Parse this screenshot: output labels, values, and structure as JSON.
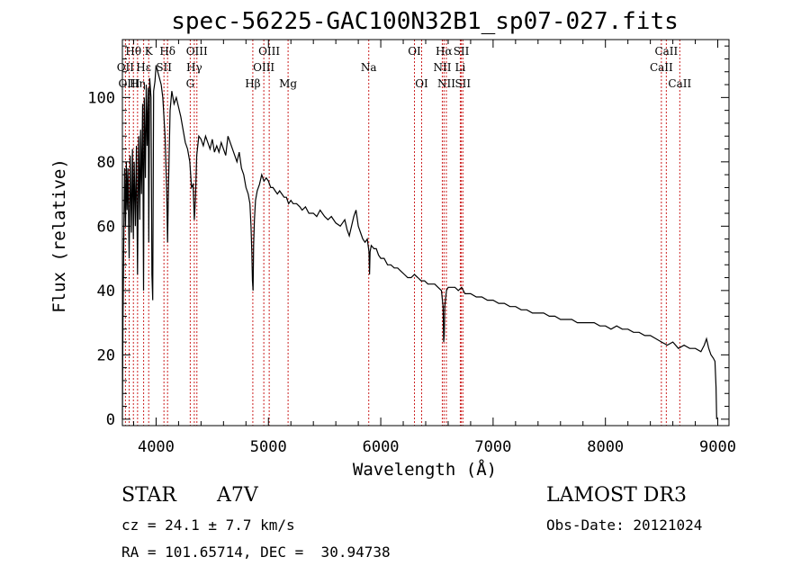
{
  "chart_data": {
    "type": "line",
    "title": "spec-56225-GAC100N32B1_sp07-027.fits",
    "xlabel": "Wavelength (Å)",
    "ylabel": "Flux (relative)",
    "xlim": [
      3700,
      9100
    ],
    "ylim": [
      -2,
      118
    ],
    "xticks": [
      4000,
      5000,
      6000,
      7000,
      8000,
      9000
    ],
    "yticks": [
      0,
      20,
      40,
      60,
      80,
      100
    ],
    "series": [
      {
        "name": "flux",
        "points": [
          [
            3700,
            0
          ],
          [
            3705,
            30
          ],
          [
            3712,
            55
          ],
          [
            3720,
            78
          ],
          [
            3728,
            60
          ],
          [
            3735,
            80
          ],
          [
            3742,
            65
          ],
          [
            3750,
            78
          ],
          [
            3760,
            50
          ],
          [
            3770,
            82
          ],
          [
            3780,
            58
          ],
          [
            3790,
            84
          ],
          [
            3798,
            56
          ],
          [
            3805,
            80
          ],
          [
            3815,
            60
          ],
          [
            3825,
            85
          ],
          [
            3835,
            45
          ],
          [
            3845,
            88
          ],
          [
            3855,
            62
          ],
          [
            3862,
            90
          ],
          [
            3870,
            70
          ],
          [
            3880,
            98
          ],
          [
            3888,
            40
          ],
          [
            3895,
            100
          ],
          [
            3905,
            75
          ],
          [
            3912,
            104
          ],
          [
            3920,
            85
          ],
          [
            3930,
            103
          ],
          [
            3935,
            55
          ],
          [
            3943,
            106
          ],
          [
            3955,
            100
          ],
          [
            3963,
            45
          ],
          [
            3970,
            37
          ],
          [
            3978,
            102
          ],
          [
            3990,
            105
          ],
          [
            4000,
            110
          ],
          [
            4015,
            108
          ],
          [
            4030,
            106
          ],
          [
            4045,
            104
          ],
          [
            4060,
            100
          ],
          [
            4080,
            88
          ],
          [
            4095,
            70
          ],
          [
            4102,
            55
          ],
          [
            4110,
            72
          ],
          [
            4125,
            96
          ],
          [
            4140,
            102
          ],
          [
            4160,
            98
          ],
          [
            4180,
            100
          ],
          [
            4200,
            97
          ],
          [
            4220,
            94
          ],
          [
            4240,
            90
          ],
          [
            4260,
            86
          ],
          [
            4280,
            84
          ],
          [
            4300,
            80
          ],
          [
            4315,
            72
          ],
          [
            4330,
            73
          ],
          [
            4340,
            62
          ],
          [
            4350,
            68
          ],
          [
            4362,
            82
          ],
          [
            4380,
            88
          ],
          [
            4400,
            87
          ],
          [
            4420,
            85
          ],
          [
            4440,
            88
          ],
          [
            4460,
            86
          ],
          [
            4480,
            84
          ],
          [
            4500,
            87
          ],
          [
            4520,
            83
          ],
          [
            4540,
            85
          ],
          [
            4560,
            83
          ],
          [
            4580,
            86
          ],
          [
            4600,
            84
          ],
          [
            4620,
            82
          ],
          [
            4640,
            88
          ],
          [
            4660,
            86
          ],
          [
            4680,
            84
          ],
          [
            4700,
            82
          ],
          [
            4720,
            80
          ],
          [
            4740,
            83
          ],
          [
            4760,
            78
          ],
          [
            4780,
            76
          ],
          [
            4800,
            72
          ],
          [
            4820,
            70
          ],
          [
            4835,
            67
          ],
          [
            4845,
            60
          ],
          [
            4852,
            52
          ],
          [
            4858,
            43
          ],
          [
            4863,
            40
          ],
          [
            4868,
            54
          ],
          [
            4875,
            62
          ],
          [
            4885,
            68
          ],
          [
            4900,
            71
          ],
          [
            4920,
            73
          ],
          [
            4940,
            76
          ],
          [
            4960,
            74
          ],
          [
            4980,
            75
          ],
          [
            5000,
            74
          ],
          [
            5020,
            72
          ],
          [
            5040,
            72
          ],
          [
            5060,
            71
          ],
          [
            5080,
            70
          ],
          [
            5100,
            71
          ],
          [
            5120,
            70
          ],
          [
            5140,
            69
          ],
          [
            5160,
            69
          ],
          [
            5180,
            67
          ],
          [
            5200,
            68
          ],
          [
            5220,
            67
          ],
          [
            5250,
            67
          ],
          [
            5280,
            66
          ],
          [
            5300,
            65
          ],
          [
            5330,
            66
          ],
          [
            5360,
            64
          ],
          [
            5400,
            64
          ],
          [
            5430,
            63
          ],
          [
            5460,
            65
          ],
          [
            5500,
            63
          ],
          [
            5530,
            62
          ],
          [
            5560,
            63
          ],
          [
            5600,
            61
          ],
          [
            5640,
            60
          ],
          [
            5680,
            62
          ],
          [
            5700,
            59
          ],
          [
            5720,
            57
          ],
          [
            5740,
            60
          ],
          [
            5760,
            63
          ],
          [
            5780,
            65
          ],
          [
            5800,
            60
          ],
          [
            5820,
            58
          ],
          [
            5840,
            56
          ],
          [
            5860,
            55
          ],
          [
            5880,
            56
          ],
          [
            5895,
            52
          ],
          [
            5900,
            45
          ],
          [
            5905,
            52
          ],
          [
            5915,
            54
          ],
          [
            5940,
            53
          ],
          [
            5960,
            53
          ],
          [
            5980,
            51
          ],
          [
            6000,
            50
          ],
          [
            6030,
            50
          ],
          [
            6060,
            48
          ],
          [
            6090,
            48
          ],
          [
            6120,
            47
          ],
          [
            6150,
            47
          ],
          [
            6180,
            46
          ],
          [
            6210,
            45
          ],
          [
            6240,
            44
          ],
          [
            6270,
            44
          ],
          [
            6300,
            45
          ],
          [
            6330,
            44
          ],
          [
            6360,
            43
          ],
          [
            6390,
            43
          ],
          [
            6420,
            42
          ],
          [
            6450,
            42
          ],
          [
            6480,
            42
          ],
          [
            6510,
            41
          ],
          [
            6540,
            40
          ],
          [
            6555,
            35
          ],
          [
            6560,
            24
          ],
          [
            6565,
            26
          ],
          [
            6570,
            35
          ],
          [
            6585,
            40
          ],
          [
            6600,
            41
          ],
          [
            6630,
            41
          ],
          [
            6660,
            41
          ],
          [
            6690,
            40
          ],
          [
            6720,
            41
          ],
          [
            6750,
            39
          ],
          [
            6800,
            39
          ],
          [
            6850,
            38
          ],
          [
            6900,
            38
          ],
          [
            6950,
            37
          ],
          [
            7000,
            37
          ],
          [
            7050,
            36
          ],
          [
            7100,
            36
          ],
          [
            7150,
            35
          ],
          [
            7200,
            35
          ],
          [
            7250,
            34
          ],
          [
            7300,
            34
          ],
          [
            7350,
            33
          ],
          [
            7400,
            33
          ],
          [
            7450,
            33
          ],
          [
            7500,
            32
          ],
          [
            7550,
            32
          ],
          [
            7600,
            31
          ],
          [
            7650,
            31
          ],
          [
            7700,
            31
          ],
          [
            7750,
            30
          ],
          [
            7800,
            30
          ],
          [
            7850,
            30
          ],
          [
            7900,
            30
          ],
          [
            7950,
            29
          ],
          [
            8000,
            29
          ],
          [
            8050,
            28
          ],
          [
            8100,
            29
          ],
          [
            8150,
            28
          ],
          [
            8200,
            28
          ],
          [
            8250,
            27
          ],
          [
            8300,
            27
          ],
          [
            8350,
            26
          ],
          [
            8400,
            26
          ],
          [
            8450,
            25
          ],
          [
            8500,
            24
          ],
          [
            8550,
            23
          ],
          [
            8600,
            24
          ],
          [
            8650,
            22
          ],
          [
            8700,
            23
          ],
          [
            8750,
            22
          ],
          [
            8800,
            22
          ],
          [
            8850,
            21
          ],
          [
            8880,
            23
          ],
          [
            8900,
            25
          ],
          [
            8920,
            22
          ],
          [
            8940,
            20
          ],
          [
            8960,
            19
          ],
          [
            8975,
            18
          ],
          [
            8985,
            10
          ],
          [
            8990,
            0
          ]
        ]
      }
    ],
    "spectral_lines": [
      {
        "label": "Hθ",
        "wavelength": 3798,
        "row": 1
      },
      {
        "label": "OII",
        "wavelength": 3727,
        "row": 2
      },
      {
        "label": "OIII",
        "wavelength": 3760,
        "row": 3
      },
      {
        "label": "K",
        "wavelength": 3934,
        "row": 1
      },
      {
        "label": "Hε",
        "wavelength": 3889,
        "row": 2
      },
      {
        "label": "Hη",
        "wavelength": 3835,
        "row": 3
      },
      {
        "label": "SII",
        "wavelength": 4070,
        "row": 2
      },
      {
        "label": "Hδ",
        "wavelength": 4102,
        "row": 1
      },
      {
        "label": "OIII",
        "wavelength": 4363,
        "row": 1
      },
      {
        "label": "Hγ",
        "wavelength": 4340,
        "row": 2
      },
      {
        "label": "G",
        "wavelength": 4304,
        "row": 3
      },
      {
        "label": "Hβ",
        "wavelength": 4861,
        "row": 3
      },
      {
        "label": "OIII",
        "wavelength": 5007,
        "row": 1
      },
      {
        "label": "OIII",
        "wavelength": 4959,
        "row": 2
      },
      {
        "label": "Mg",
        "wavelength": 5175,
        "row": 3
      },
      {
        "label": "Na",
        "wavelength": 5893,
        "row": 2
      },
      {
        "label": "OI",
        "wavelength": 6300,
        "row": 1
      },
      {
        "label": "OI",
        "wavelength": 6364,
        "row": 3
      },
      {
        "label": "Hα",
        "wavelength": 6563,
        "row": 1
      },
      {
        "label": "SII",
        "wavelength": 6717,
        "row": 1
      },
      {
        "label": "NII",
        "wavelength": 6548,
        "row": 2
      },
      {
        "label": "Li",
        "wavelength": 6708,
        "row": 2
      },
      {
        "label": "NII",
        "wavelength": 6584,
        "row": 3
      },
      {
        "label": "SII",
        "wavelength": 6731,
        "row": 3
      },
      {
        "label": "CaII",
        "wavelength": 8542,
        "row": 1
      },
      {
        "label": "CaII",
        "wavelength": 8498,
        "row": 2
      },
      {
        "label": "CaII",
        "wavelength": 8662,
        "row": 3
      }
    ]
  },
  "info": {
    "class": "STAR",
    "subclass": "A7V",
    "redshift": "cz = 24.1 ± 7.7 km/s",
    "coords": "RA = 101.65714, DEC =  30.94738",
    "survey": "LAMOST DR3",
    "obs_date": "Obs-Date: 20121024"
  }
}
